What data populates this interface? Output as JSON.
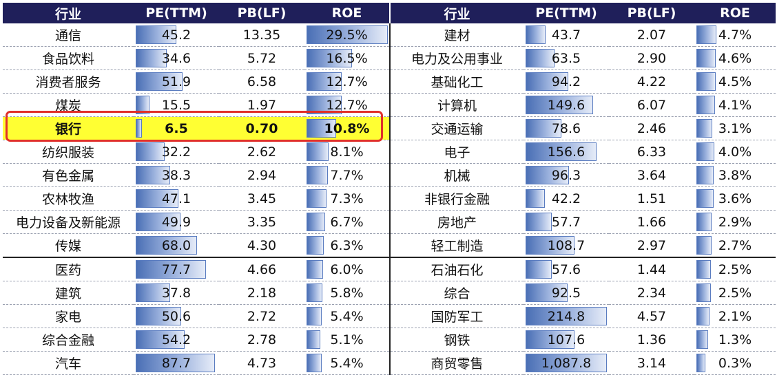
{
  "headers": [
    "行业",
    "PE(TTM)",
    "PB(LF)",
    "ROE",
    "行业",
    "PE(TTM)",
    "PB(LF)",
    "ROE"
  ],
  "colors": {
    "header_bg": "#1f1f5a",
    "highlight": "#ffff33",
    "highlight_border": "#e0302a",
    "bar": "#4a6fb5"
  },
  "highlight_row": 4,
  "chart_data": {
    "type": "table",
    "columns": [
      "行业",
      "PE(TTM)",
      "PB(LF)",
      "ROE"
    ],
    "left": [
      {
        "name": "通信",
        "pe": "45.2",
        "pb": "13.35",
        "roe": "29.5%"
      },
      {
        "name": "食品饮料",
        "pe": "34.6",
        "pb": "5.72",
        "roe": "16.5%"
      },
      {
        "name": "消费者服务",
        "pe": "51.9",
        "pb": "6.58",
        "roe": "12.7%"
      },
      {
        "name": "煤炭",
        "pe": "15.5",
        "pb": "1.97",
        "roe": "12.7%"
      },
      {
        "name": "银行",
        "pe": "6.5",
        "pb": "0.70",
        "roe": "10.8%"
      },
      {
        "name": "纺织服装",
        "pe": "32.2",
        "pb": "2.62",
        "roe": "8.1%"
      },
      {
        "name": "有色金属",
        "pe": "38.3",
        "pb": "2.94",
        "roe": "7.7%"
      },
      {
        "name": "农林牧渔",
        "pe": "47.1",
        "pb": "3.45",
        "roe": "7.3%"
      },
      {
        "name": "电力设备及新能源",
        "pe": "49.9",
        "pb": "3.35",
        "roe": "6.7%"
      },
      {
        "name": "传媒",
        "pe": "68.0",
        "pb": "4.30",
        "roe": "6.3%"
      },
      {
        "name": "医药",
        "pe": "77.7",
        "pb": "4.66",
        "roe": "6.0%"
      },
      {
        "name": "建筑",
        "pe": "37.8",
        "pb": "2.18",
        "roe": "5.8%"
      },
      {
        "name": "家电",
        "pe": "50.6",
        "pb": "2.72",
        "roe": "5.4%"
      },
      {
        "name": "综合金融",
        "pe": "54.2",
        "pb": "2.78",
        "roe": "5.1%"
      },
      {
        "name": "汽车",
        "pe": "87.7",
        "pb": "4.73",
        "roe": "5.4%"
      }
    ],
    "right": [
      {
        "name": "建材",
        "pe": "43.7",
        "pb": "2.07",
        "roe": "4.7%"
      },
      {
        "name": "电力及公用事业",
        "pe": "63.5",
        "pb": "2.90",
        "roe": "4.6%"
      },
      {
        "name": "基础化工",
        "pe": "94.2",
        "pb": "4.22",
        "roe": "4.5%"
      },
      {
        "name": "计算机",
        "pe": "149.6",
        "pb": "6.07",
        "roe": "4.1%"
      },
      {
        "name": "交通运输",
        "pe": "78.6",
        "pb": "2.46",
        "roe": "3.1%"
      },
      {
        "name": "电子",
        "pe": "156.6",
        "pb": "6.33",
        "roe": "4.0%"
      },
      {
        "name": "机械",
        "pe": "96.3",
        "pb": "3.64",
        "roe": "3.8%"
      },
      {
        "name": "非银行金融",
        "pe": "42.2",
        "pb": "1.51",
        "roe": "3.6%"
      },
      {
        "name": "房地产",
        "pe": "57.7",
        "pb": "1.66",
        "roe": "2.9%"
      },
      {
        "name": "轻工制造",
        "pe": "108.7",
        "pb": "2.97",
        "roe": "2.7%"
      },
      {
        "name": "石油石化",
        "pe": "57.6",
        "pb": "1.44",
        "roe": "2.5%"
      },
      {
        "name": "综合",
        "pe": "92.5",
        "pb": "2.34",
        "roe": "2.5%"
      },
      {
        "name": "国防军工",
        "pe": "214.8",
        "pb": "4.57",
        "roe": "2.1%"
      },
      {
        "name": "钢铁",
        "pe": "107.6",
        "pb": "1.36",
        "roe": "1.3%"
      },
      {
        "name": "商贸零售",
        "pe": "1,087.8",
        "pb": "3.14",
        "roe": "0.3%"
      }
    ]
  }
}
